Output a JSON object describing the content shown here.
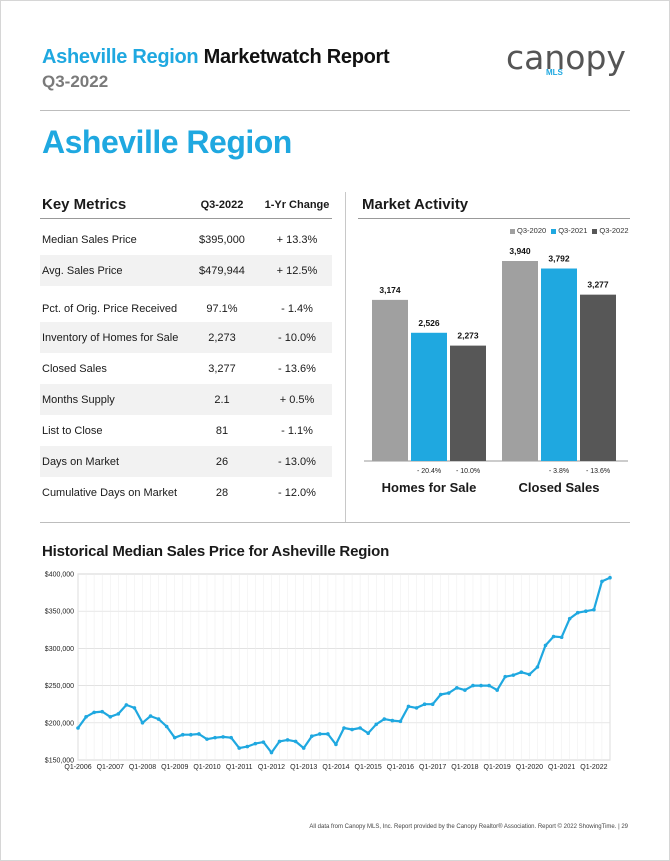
{
  "header": {
    "title_region": "Asheville Region",
    "title_rest": "Marketwatch Report",
    "period": "Q3-2022",
    "logo_word": "canopy",
    "logo_sub": "MLS",
    "accent": "#1fa8e0"
  },
  "region_title": "Asheville Region",
  "key_metrics": {
    "heading": "Key Metrics",
    "col_period": "Q3-2022",
    "col_change": "1-Yr Change",
    "rows": [
      {
        "label": "Median Sales Price",
        "value": "$395,000",
        "change": "+ 13.3%"
      },
      {
        "label": "Avg. Sales Price",
        "value": "$479,944",
        "change": "+ 12.5%"
      },
      {
        "label": "Pct. of Orig. Price Received",
        "value": "97.1%",
        "change": "- 1.4%"
      },
      {
        "label": "Inventory of Homes for Sale",
        "value": "2,273",
        "change": "- 10.0%"
      },
      {
        "label": "Closed Sales",
        "value": "3,277",
        "change": "- 13.6%"
      },
      {
        "label": "Months Supply",
        "value": "2.1",
        "change": "+ 0.5%"
      },
      {
        "label": "List to Close",
        "value": "81",
        "change": "- 1.1%"
      },
      {
        "label": "Days on Market",
        "value": "26",
        "change": "- 13.0%"
      },
      {
        "label": "Cumulative Days on Market",
        "value": "28",
        "change": "- 12.0%"
      }
    ]
  },
  "market_activity": {
    "heading": "Market Activity"
  },
  "historical": {
    "heading": "Historical Median Sales Price for Asheville Region"
  },
  "footer": "All data from Canopy MLS, Inc. Report provided by the Canopy Realtor® Association. Report © 2022 ShowingTime.  |  29",
  "chart_data": [
    {
      "type": "bar",
      "title": "Market Activity",
      "categories": [
        "Homes for Sale",
        "Closed Sales"
      ],
      "series": [
        {
          "name": "Q3-2020",
          "values": [
            3174,
            3940
          ],
          "labels": [
            "3,174",
            "3,940"
          ],
          "color": "#a0a0a0"
        },
        {
          "name": "Q3-2021",
          "values": [
            2526,
            3792
          ],
          "labels": [
            "2,526",
            "3,792"
          ],
          "color": "#1fa8e0"
        },
        {
          "name": "Q3-2022",
          "values": [
            2273,
            3277
          ],
          "labels": [
            "2,273",
            "3,277"
          ],
          "color": "#575757"
        }
      ],
      "changes": [
        [
          "- 20.4%",
          "- 10.0%"
        ],
        [
          "- 3.8%",
          "- 13.6%"
        ]
      ],
      "ylim": [
        0,
        4200
      ],
      "legend": "top-right",
      "grid": false
    },
    {
      "type": "line",
      "title": "Historical Median Sales Price for Asheville Region",
      "xticks": [
        "Q1-2006",
        "Q1-2007",
        "Q1-2008",
        "Q1-2009",
        "Q1-2010",
        "Q1-2011",
        "Q1-2012",
        "Q1-2013",
        "Q1-2014",
        "Q1-2015",
        "Q1-2016",
        "Q1-2017",
        "Q1-2018",
        "Q1-2019",
        "Q1-2020",
        "Q1-2021",
        "Q1-2022"
      ],
      "yticks": [
        "$150,000",
        "$200,000",
        "$250,000",
        "$300,000",
        "$350,000",
        "$400,000"
      ],
      "ylim": [
        150000,
        400000
      ],
      "x_start": "Q1-2006",
      "x_end": "Q3-2022",
      "grid": true,
      "color": "#1fa8e0",
      "values": [
        193000,
        208000,
        214000,
        215000,
        208000,
        212000,
        224000,
        220000,
        200000,
        209000,
        205000,
        195000,
        180000,
        184000,
        184000,
        185000,
        178000,
        180000,
        181000,
        180000,
        166000,
        168000,
        172000,
        174000,
        160000,
        175000,
        177000,
        175000,
        166000,
        182000,
        185000,
        185000,
        171000,
        193000,
        191000,
        193000,
        186000,
        198000,
        205000,
        203000,
        202000,
        222000,
        220000,
        225000,
        225000,
        238000,
        240000,
        247000,
        244000,
        250000,
        250000,
        250000,
        244000,
        262000,
        264000,
        268000,
        265000,
        275000,
        304000,
        316000,
        315000,
        340000,
        348000,
        350000,
        352000,
        390000,
        395000
      ]
    }
  ]
}
